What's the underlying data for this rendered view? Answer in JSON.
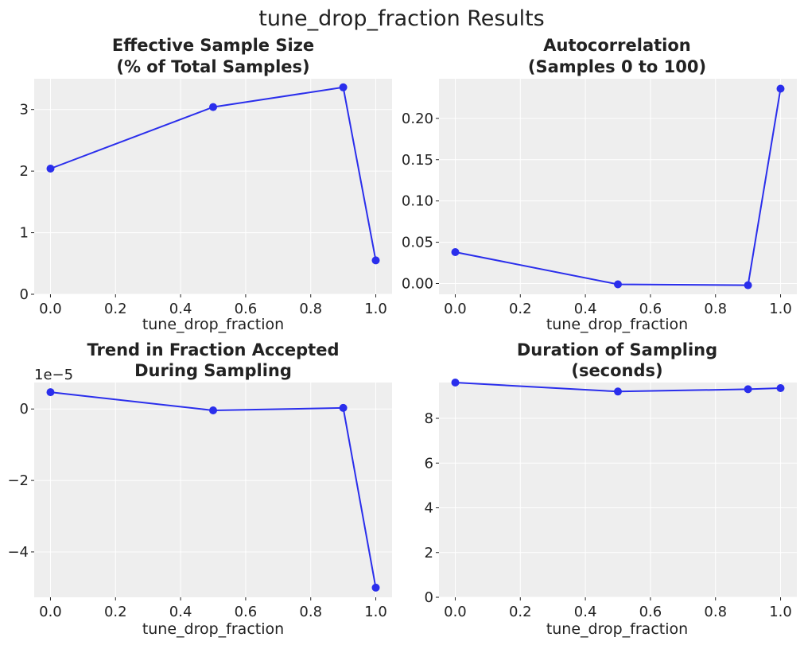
{
  "figure_title": "tune_drop_fraction Results",
  "colors": {
    "series": "#2a2eec",
    "background": "#eeeeee",
    "grid": "#ffffff",
    "text": "#222222"
  },
  "chart_data": [
    {
      "type": "line",
      "title": [
        "Effective Sample Size",
        "(% of Total Samples)"
      ],
      "xlabel": "tune_drop_fraction",
      "ylabel": "",
      "x": [
        0.0,
        0.5,
        0.9,
        1.0
      ],
      "y": [
        2.04,
        3.04,
        3.36,
        0.55
      ],
      "xlim": [
        -0.05,
        1.05
      ],
      "ylim": [
        0,
        3.5
      ],
      "xticks": [
        0.0,
        0.2,
        0.4,
        0.6,
        0.8,
        1.0
      ],
      "xtick_labels": [
        "0.0",
        "0.2",
        "0.4",
        "0.6",
        "0.8",
        "1.0"
      ],
      "yticks": [
        0,
        1,
        2,
        3
      ],
      "ytick_labels": [
        "0",
        "1",
        "2",
        "3"
      ],
      "offset_text": "",
      "grid": true
    },
    {
      "type": "line",
      "title": [
        "Autocorrelation",
        "(Samples 0 to 100)"
      ],
      "xlabel": "tune_drop_fraction",
      "ylabel": "",
      "x": [
        0.0,
        0.5,
        0.9,
        1.0
      ],
      "y": [
        0.038,
        -0.001,
        -0.002,
        0.236
      ],
      "xlim": [
        -0.05,
        1.05
      ],
      "ylim": [
        -0.013,
        0.248
      ],
      "xticks": [
        0.0,
        0.2,
        0.4,
        0.6,
        0.8,
        1.0
      ],
      "xtick_labels": [
        "0.0",
        "0.2",
        "0.4",
        "0.6",
        "0.8",
        "1.0"
      ],
      "yticks": [
        0.0,
        0.05,
        0.1,
        0.15,
        0.2
      ],
      "ytick_labels": [
        "0.00",
        "0.05",
        "0.10",
        "0.15",
        "0.20"
      ],
      "offset_text": "",
      "grid": true
    },
    {
      "type": "line",
      "title": [
        "Trend in Fraction Accepted",
        "During Sampling"
      ],
      "xlabel": "tune_drop_fraction",
      "ylabel": "",
      "x": [
        0.0,
        0.5,
        0.9,
        1.0
      ],
      "y": [
        0.47,
        -0.04,
        0.03,
        -5.0
      ],
      "y_units": "1e-5",
      "xlim": [
        -0.05,
        1.05
      ],
      "ylim": [
        -5.27,
        0.74
      ],
      "xticks": [
        0.0,
        0.2,
        0.4,
        0.6,
        0.8,
        1.0
      ],
      "xtick_labels": [
        "0.0",
        "0.2",
        "0.4",
        "0.6",
        "0.8",
        "1.0"
      ],
      "yticks": [
        0,
        -2,
        -4
      ],
      "ytick_labels": [
        "0",
        "−2",
        "−4"
      ],
      "offset_text": "1e−5",
      "grid": true
    },
    {
      "type": "line",
      "title": [
        "Duration of Sampling",
        "(seconds)"
      ],
      "xlabel": "tune_drop_fraction",
      "ylabel": "",
      "x": [
        0.0,
        0.5,
        0.9,
        1.0
      ],
      "y": [
        9.6,
        9.2,
        9.3,
        9.35
      ],
      "xlim": [
        -0.05,
        1.05
      ],
      "ylim": [
        0,
        9.6
      ],
      "xticks": [
        0.0,
        0.2,
        0.4,
        0.6,
        0.8,
        1.0
      ],
      "xtick_labels": [
        "0.0",
        "0.2",
        "0.4",
        "0.6",
        "0.8",
        "1.0"
      ],
      "yticks": [
        0,
        2,
        4,
        6,
        8
      ],
      "ytick_labels": [
        "0",
        "2",
        "4",
        "6",
        "8"
      ],
      "offset_text": "",
      "grid": true
    }
  ]
}
